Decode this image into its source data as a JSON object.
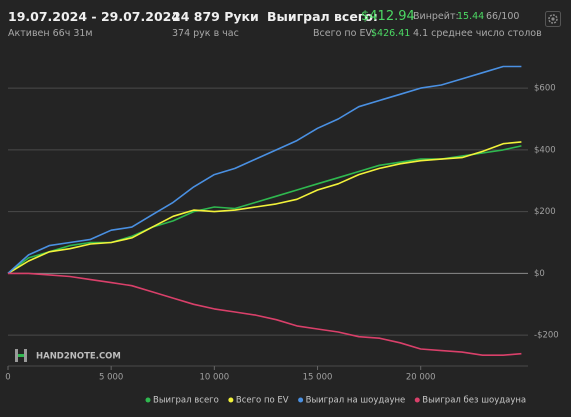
{
  "header": {
    "period": "19.07.2024 - 29.07.2024",
    "active": "Активен 66ч 31м",
    "hands": "24 879 Руки",
    "hands_per_hour": "374 рук в час",
    "won_label": "Выиграл всего:",
    "won_value": "$412.94",
    "ev_label": "Всего по EV:",
    "ev_value": "$426.41",
    "winrate_label": "Винрейт:",
    "winrate_value": "15.44",
    "winrate_score": "66/100",
    "tables": "4.1 среднее число столов",
    "watermark": "HAND2NOTE.COM"
  },
  "chart_data": {
    "type": "line",
    "x": [
      0,
      1000,
      2000,
      3000,
      4000,
      5000,
      6000,
      7000,
      8000,
      9000,
      10000,
      11000,
      12000,
      13000,
      14000,
      15000,
      16000,
      17000,
      18000,
      19000,
      20000,
      21000,
      22000,
      23000,
      24000,
      24879
    ],
    "series": [
      {
        "name": "Выиграл всего",
        "color": "#2fb84f",
        "values": [
          0,
          50,
          70,
          90,
          100,
          100,
          120,
          150,
          170,
          200,
          215,
          210,
          230,
          250,
          270,
          290,
          310,
          330,
          350,
          360,
          370,
          370,
          380,
          390,
          400,
          413
        ]
      },
      {
        "name": "Всего по EV",
        "color": "#f2f23a",
        "values": [
          0,
          40,
          70,
          80,
          95,
          100,
          115,
          150,
          185,
          205,
          200,
          205,
          215,
          225,
          240,
          270,
          290,
          320,
          340,
          355,
          365,
          370,
          375,
          395,
          420,
          426
        ]
      },
      {
        "name": "Выиграл на шоудауне",
        "color": "#4a90e2",
        "values": [
          0,
          60,
          90,
          100,
          110,
          140,
          150,
          190,
          230,
          280,
          320,
          340,
          370,
          400,
          430,
          470,
          500,
          540,
          560,
          580,
          600,
          610,
          630,
          650,
          670,
          670
        ]
      },
      {
        "name": "Выиграл без шоудауна",
        "color": "#d9406a",
        "values": [
          0,
          0,
          -5,
          -10,
          -20,
          -30,
          -40,
          -60,
          -80,
          -100,
          -115,
          -125,
          -135,
          -150,
          -170,
          -180,
          -190,
          -205,
          -210,
          -225,
          -245,
          -250,
          -255,
          -265,
          -265,
          -260
        ]
      }
    ],
    "xlim": [
      0,
      25200
    ],
    "ylim": [
      -300,
      730
    ],
    "xticks": [
      0,
      {
        "value": 5000,
        "label": "5 000"
      },
      {
        "value": 10000,
        "label": "10 000"
      },
      {
        "value": 15000,
        "label": "15 000"
      },
      {
        "value": 20000,
        "label": "20 000"
      }
    ],
    "yticks": [
      {
        "value": -200,
        "label": "-$200"
      },
      {
        "value": 0,
        "label": "$0"
      },
      {
        "value": 200,
        "label": "$200"
      },
      {
        "value": 400,
        "label": "$400"
      },
      {
        "value": 600,
        "label": "$600"
      }
    ],
    "grid": true,
    "legend": "bottom"
  }
}
